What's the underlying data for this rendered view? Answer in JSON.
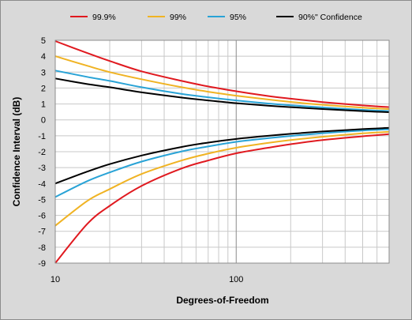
{
  "chart_data": {
    "type": "line",
    "title": "",
    "xlabel": "Degrees-of-Freedom",
    "ylabel": "Confidence Interval (dB)",
    "xscale": "log",
    "xlim": [
      10,
      700
    ],
    "ylim": [
      -9,
      5
    ],
    "grid": true,
    "legend_position": "top",
    "x_tick_labels": [
      "10",
      "100"
    ],
    "y_ticks": [
      5,
      4,
      3,
      2,
      1,
      0,
      -1,
      -2,
      -3,
      -4,
      -5,
      -6,
      -7,
      -8,
      -9
    ],
    "x": [
      10,
      15,
      20,
      30,
      50,
      70,
      100,
      150,
      200,
      300,
      500,
      700
    ],
    "series": [
      {
        "name": "99.9%",
        "color": "#e0191f",
        "upper": [
          4.95,
          4.2,
          3.7,
          3.05,
          2.45,
          2.1,
          1.8,
          1.5,
          1.33,
          1.12,
          0.91,
          0.8
        ],
        "lower": [
          -9.0,
          -6.55,
          -5.4,
          -4.15,
          -3.05,
          -2.55,
          -2.1,
          -1.75,
          -1.53,
          -1.27,
          -1.03,
          -0.9
        ]
      },
      {
        "name": "99%",
        "color": "#f0b323",
        "upper": [
          4.0,
          3.4,
          3.0,
          2.55,
          2.05,
          1.77,
          1.52,
          1.28,
          1.13,
          0.95,
          0.77,
          0.68
        ],
        "lower": [
          -6.65,
          -5.1,
          -4.35,
          -3.4,
          -2.55,
          -2.12,
          -1.75,
          -1.45,
          -1.27,
          -1.06,
          -0.85,
          -0.75
        ]
      },
      {
        "name": "95%",
        "color": "#29a3d6",
        "upper": [
          3.1,
          2.7,
          2.45,
          2.05,
          1.63,
          1.42,
          1.22,
          1.03,
          0.92,
          0.78,
          0.63,
          0.55
        ],
        "lower": [
          -4.85,
          -3.85,
          -3.3,
          -2.62,
          -1.98,
          -1.67,
          -1.38,
          -1.15,
          -1.01,
          -0.84,
          -0.67,
          -0.59
        ]
      },
      {
        "name": "90%\" Confidence",
        "color": "#000000",
        "upper": [
          2.6,
          2.25,
          2.05,
          1.73,
          1.4,
          1.22,
          1.05,
          0.89,
          0.8,
          0.68,
          0.55,
          0.48
        ],
        "lower": [
          -4.0,
          -3.25,
          -2.78,
          -2.24,
          -1.7,
          -1.43,
          -1.2,
          -1.0,
          -0.88,
          -0.73,
          -0.58,
          -0.5
        ]
      }
    ]
  }
}
